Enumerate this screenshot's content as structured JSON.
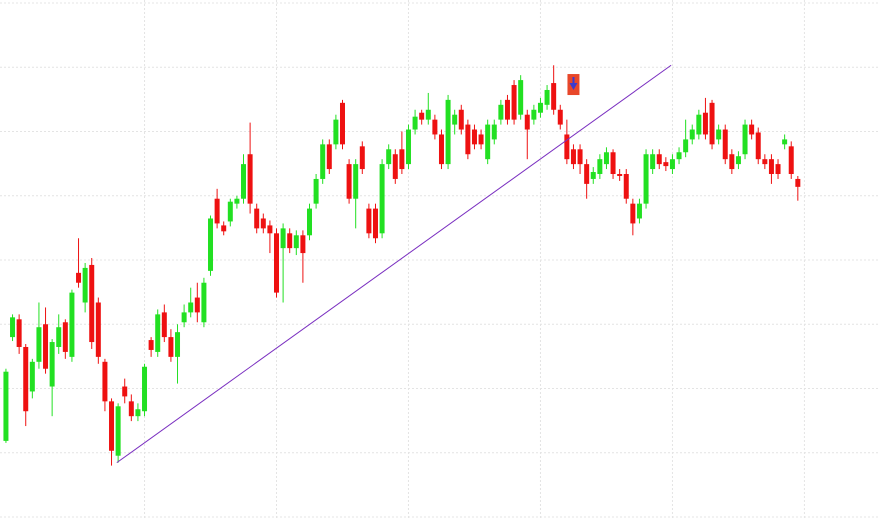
{
  "chart_data": {
    "type": "candlestick",
    "up_color": "#22e022",
    "down_color": "#ee1111",
    "xlim": [
      -0.9,
      132.3
    ],
    "ylim": [
      0,
      520
    ],
    "xticks": [
      21,
      41,
      61,
      81,
      101,
      121
    ],
    "yticks": [
      0,
      65,
      130,
      195,
      260,
      325,
      390,
      455,
      520
    ],
    "grid": true,
    "open": [
      77,
      182,
      200,
      172,
      127,
      157,
      195,
      132,
      172,
      197,
      162,
      247,
      217,
      255,
      217,
      157,
      117,
      62,
      132,
      117,
      102,
      107,
      179,
      167,
      207,
      182,
      162,
      197,
      207,
      222,
      197,
      249,
      322,
      295,
      299,
      317,
      322,
      367,
      312,
      302,
      295,
      287,
      272,
      287,
      272,
      285,
      285,
      317,
      342,
      377,
      377,
      419,
      357,
      322,
      375,
      312,
      312,
      287,
      357,
      367,
      372,
      357,
      392,
      409,
      402,
      402,
      387,
      357,
      397,
      412,
      397,
      392,
      387,
      362,
      382,
      402,
      422,
      437,
      407,
      407,
      402,
      409,
      417,
      439,
      412,
      387,
      372,
      372,
      357,
      342,
      347,
      357,
      369,
      347,
      347,
      317,
      302,
      317,
      352,
      367,
      359,
      352,
      362,
      369,
      382,
      387,
      409,
      419,
      382,
      392,
      367,
      357,
      367,
      397,
      389,
      362,
      362,
      357,
      377,
      375,
      342
    ],
    "high": [
      150,
      205,
      205,
      175,
      160,
      217,
      212,
      180,
      205,
      200,
      230,
      282,
      257,
      262,
      222,
      160,
      120,
      115,
      140,
      124,
      115,
      155,
      182,
      210,
      215,
      190,
      195,
      215,
      232,
      237,
      242,
      305,
      332,
      299,
      322,
      325,
      367,
      399,
      317,
      307,
      300,
      292,
      297,
      292,
      290,
      290,
      317,
      347,
      382,
      382,
      407,
      422,
      362,
      362,
      380,
      317,
      317,
      362,
      377,
      372,
      390,
      397,
      412,
      412,
      429,
      407,
      392,
      427,
      412,
      417,
      402,
      397,
      392,
      402,
      402,
      422,
      427,
      442,
      447,
      412,
      417,
      424,
      437,
      457,
      417,
      402,
      377,
      377,
      362,
      354,
      367,
      374,
      372,
      352,
      352,
      322,
      322,
      372,
      372,
      372,
      364,
      367,
      374,
      402,
      397,
      412,
      424,
      422,
      397,
      397,
      372,
      370,
      402,
      402,
      394,
      367,
      367,
      362,
      387,
      380,
      345
    ],
    "low": [
      75,
      178,
      165,
      92,
      120,
      150,
      145,
      102,
      165,
      160,
      157,
      232,
      207,
      170,
      155,
      107,
      52,
      55,
      115,
      97,
      97,
      102,
      162,
      162,
      177,
      157,
      135,
      192,
      202,
      197,
      192,
      244,
      292,
      285,
      294,
      312,
      317,
      307,
      287,
      287,
      267,
      222,
      217,
      267,
      265,
      237,
      280,
      312,
      337,
      347,
      372,
      372,
      317,
      292,
      347,
      282,
      277,
      282,
      352,
      337,
      347,
      352,
      387,
      397,
      397,
      382,
      352,
      352,
      387,
      387,
      362,
      372,
      372,
      357,
      377,
      397,
      397,
      397,
      402,
      362,
      397,
      404,
      412,
      407,
      392,
      357,
      352,
      347,
      322,
      337,
      342,
      352,
      342,
      340,
      317,
      285,
      297,
      312,
      347,
      352,
      350,
      347,
      357,
      364,
      377,
      382,
      382,
      372,
      377,
      357,
      347,
      352,
      362,
      382,
      357,
      352,
      337,
      342,
      372,
      342,
      320
    ],
    "close": [
      147,
      202,
      172,
      107,
      157,
      192,
      150,
      177,
      192,
      167,
      227,
      237,
      252,
      177,
      162,
      117,
      67,
      112,
      122,
      102,
      109,
      152,
      169,
      205,
      182,
      162,
      187,
      207,
      217,
      207,
      237,
      302,
      297,
      289,
      319,
      322,
      357,
      317,
      292,
      292,
      287,
      227,
      292,
      272,
      285,
      267,
      312,
      342,
      377,
      352,
      402,
      377,
      322,
      357,
      352,
      287,
      282,
      357,
      372,
      342,
      352,
      392,
      405,
      402,
      412,
      387,
      357,
      422,
      407,
      392,
      367,
      377,
      377,
      397,
      397,
      417,
      402,
      402,
      442,
      392,
      412,
      419,
      432,
      412,
      397,
      362,
      357,
      357,
      337,
      349,
      362,
      369,
      347,
      345,
      322,
      297,
      317,
      367,
      367,
      357,
      355,
      362,
      369,
      382,
      392,
      407,
      387,
      377,
      392,
      362,
      352,
      365,
      397,
      387,
      362,
      357,
      347,
      347,
      382,
      347,
      334
    ],
    "trendline": {
      "x": [
        16.8,
        100.8
      ],
      "y": [
        55,
        457
      ],
      "color": "#7a2fc0"
    },
    "signal": {
      "index": 86,
      "value": 437,
      "color": "#e8472a",
      "arrow_color": "#3a3ad0"
    }
  }
}
